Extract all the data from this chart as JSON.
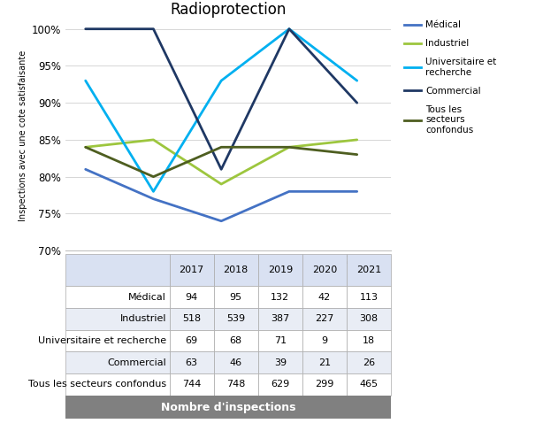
{
  "title": "Radioprotection",
  "years": [
    2017,
    2018,
    2019,
    2020,
    2021
  ],
  "series": {
    "Médical": {
      "values": [
        81,
        77,
        74,
        78,
        78
      ],
      "color": "#4472C4"
    },
    "Industriel": {
      "values": [
        84,
        85,
        79,
        84,
        85
      ],
      "color": "#9DC63E"
    },
    "Universitaire et recherche": {
      "values": [
        93,
        78,
        93,
        100,
        93
      ],
      "color": "#00B0F0"
    },
    "Commercial": {
      "values": [
        100,
        100,
        81,
        100,
        90
      ],
      "color": "#1F3864"
    },
    "Tous les secteurs confondus": {
      "values": [
        84,
        80,
        84,
        84,
        83
      ],
      "color": "#4E5E20"
    }
  },
  "ylabel": "Inspections avec une cote satisfaisante",
  "ylim": [
    70,
    101
  ],
  "yticks": [
    70,
    75,
    80,
    85,
    90,
    95,
    100
  ],
  "table_headers": [
    "",
    "2017",
    "2018",
    "2019",
    "2020",
    "2021"
  ],
  "table_rows": [
    [
      "Médical",
      "94",
      "95",
      "132",
      "42",
      "113"
    ],
    [
      "Industriel",
      "518",
      "539",
      "387",
      "227",
      "308"
    ],
    [
      "Universitaire et recherche",
      "69",
      "68",
      "71",
      "9",
      "18"
    ],
    [
      "Commercial",
      "63",
      "46",
      "39",
      "21",
      "26"
    ],
    [
      "Tous les secteurs confondus",
      "744",
      "748",
      "629",
      "299",
      "465"
    ]
  ],
  "table_footer": "Nombre d'inspections",
  "legend_order": [
    "Médical",
    "Industriel",
    "Universitaire et recherche",
    "Commercial",
    "Tous les secteurs confondus"
  ],
  "line_width": 2.0,
  "bg_color": "#FFFFFF",
  "table_header_bg": "#D9E1F2",
  "table_row_bg_odd": "#FFFFFF",
  "table_row_bg_even": "#E9EDF5",
  "table_footer_bg": "#808080",
  "table_border_color": "#AAAAAA"
}
